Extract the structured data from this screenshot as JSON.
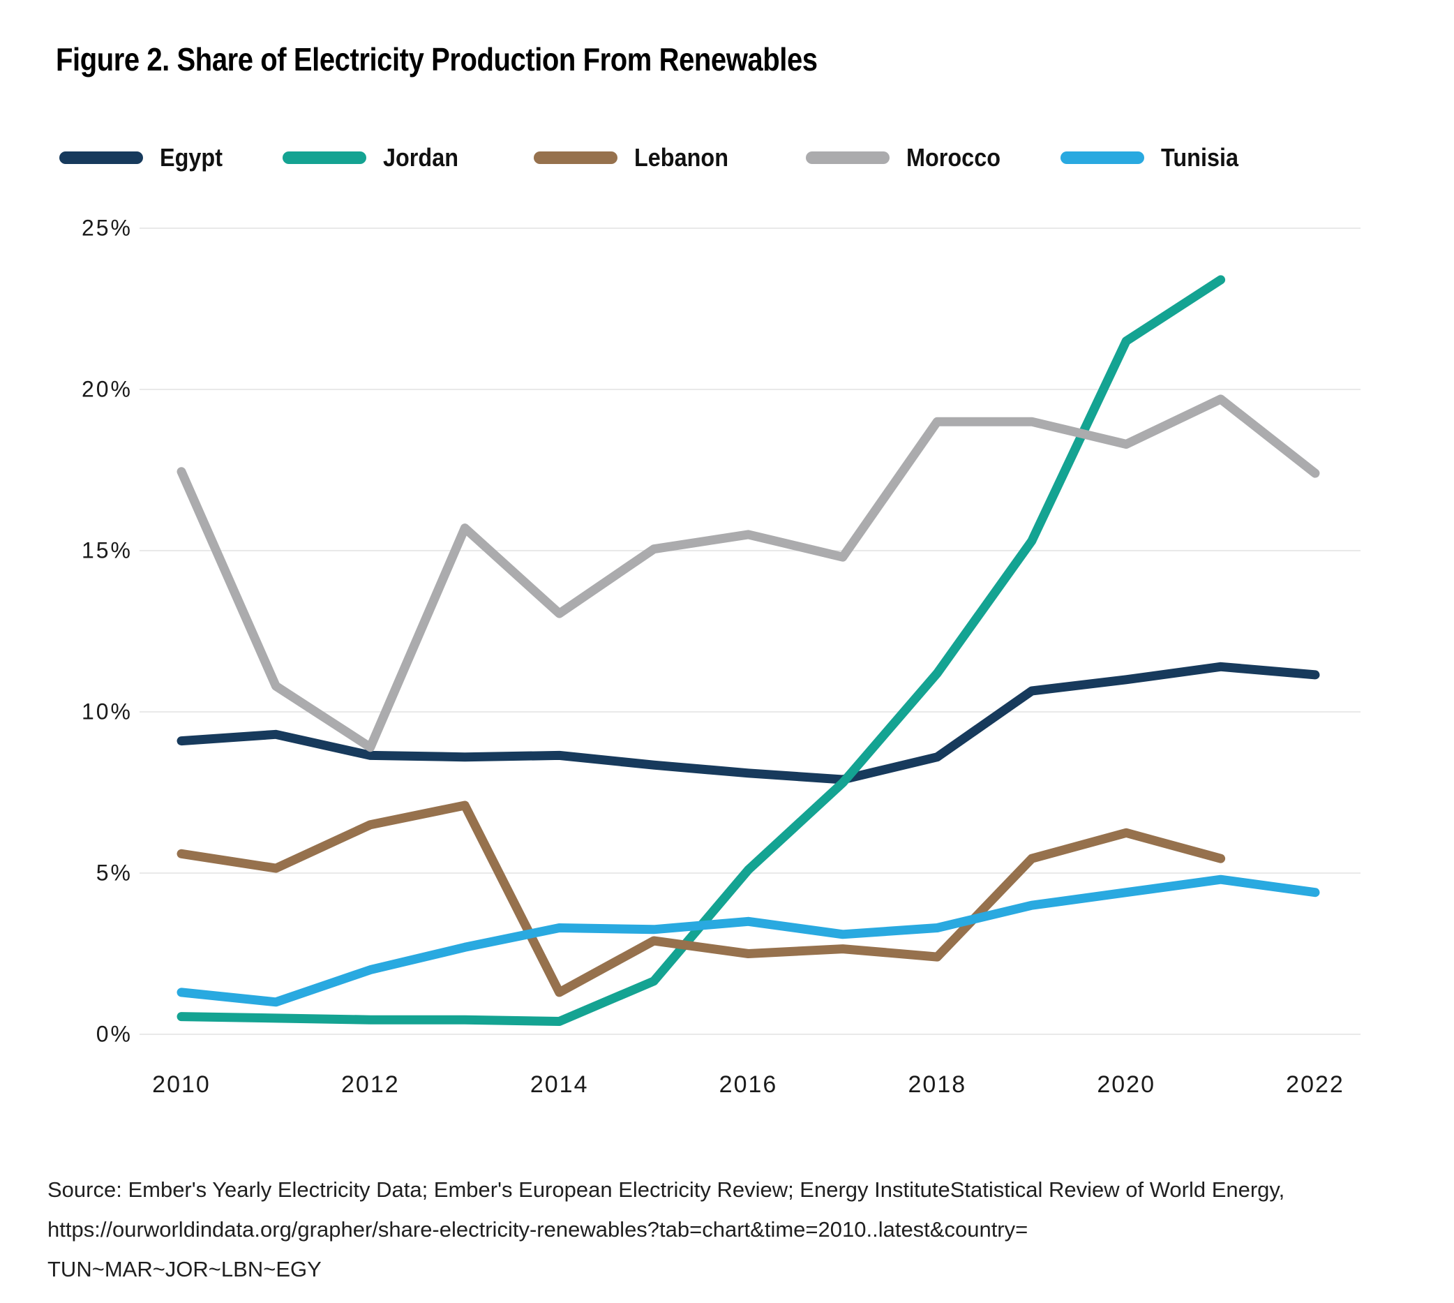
{
  "figure": {
    "title": "Figure 2. Share of Electricity Production From Renewables",
    "source_lines": [
      "Source: Ember's Yearly Electricity Data; Ember's European Electricity Review; Energy InstituteStatistical Review of World Energy,",
      "https://ourworldindata.org/grapher/share-electricity-renewables?tab=chart&time=2010..latest&country=",
      "TUN~MAR~JOR~LBN~EGY"
    ]
  },
  "chart_data": {
    "type": "line",
    "title": "Figure 2. Share of Electricity Production From Renewables",
    "xlabel": "",
    "ylabel": "",
    "x": [
      2010,
      2011,
      2012,
      2013,
      2014,
      2015,
      2016,
      2017,
      2018,
      2019,
      2020,
      2021,
      2022
    ],
    "x_tick_labels": [
      "2010",
      "2012",
      "2014",
      "2016",
      "2018",
      "2020",
      "2022"
    ],
    "y_tick_labels": [
      "0%",
      "5%",
      "10%",
      "15%",
      "20%",
      "25%"
    ],
    "ylim": [
      0,
      25
    ],
    "y_tick_step": 5,
    "grid": "horizontal",
    "legend_position": "top",
    "series": [
      {
        "name": "Egypt",
        "color": "#173A5C",
        "values": [
          9.1,
          9.3,
          8.65,
          8.6,
          8.65,
          8.35,
          8.1,
          7.9,
          8.6,
          10.65,
          11.0,
          11.4,
          11.15
        ]
      },
      {
        "name": "Jordan",
        "color": "#14A392",
        "values": [
          0.55,
          0.5,
          0.45,
          0.45,
          0.4,
          1.65,
          5.1,
          7.8,
          11.2,
          15.3,
          21.5,
          23.4,
          null
        ]
      },
      {
        "name": "Lebanon",
        "color": "#96714D",
        "values": [
          5.6,
          5.15,
          6.5,
          7.1,
          1.3,
          2.9,
          2.5,
          2.65,
          2.4,
          5.45,
          6.25,
          5.45,
          null
        ]
      },
      {
        "name": "Morocco",
        "color": "#ABABAD",
        "values": [
          17.45,
          10.8,
          8.9,
          15.7,
          13.05,
          15.05,
          15.5,
          14.8,
          19.0,
          19.0,
          18.3,
          19.7,
          17.4
        ]
      },
      {
        "name": "Tunisia",
        "color": "#29A9E0",
        "values": [
          1.3,
          1.0,
          2.0,
          2.7,
          3.3,
          3.25,
          3.5,
          3.1,
          3.3,
          4.0,
          4.4,
          4.8,
          4.4
        ]
      }
    ]
  }
}
